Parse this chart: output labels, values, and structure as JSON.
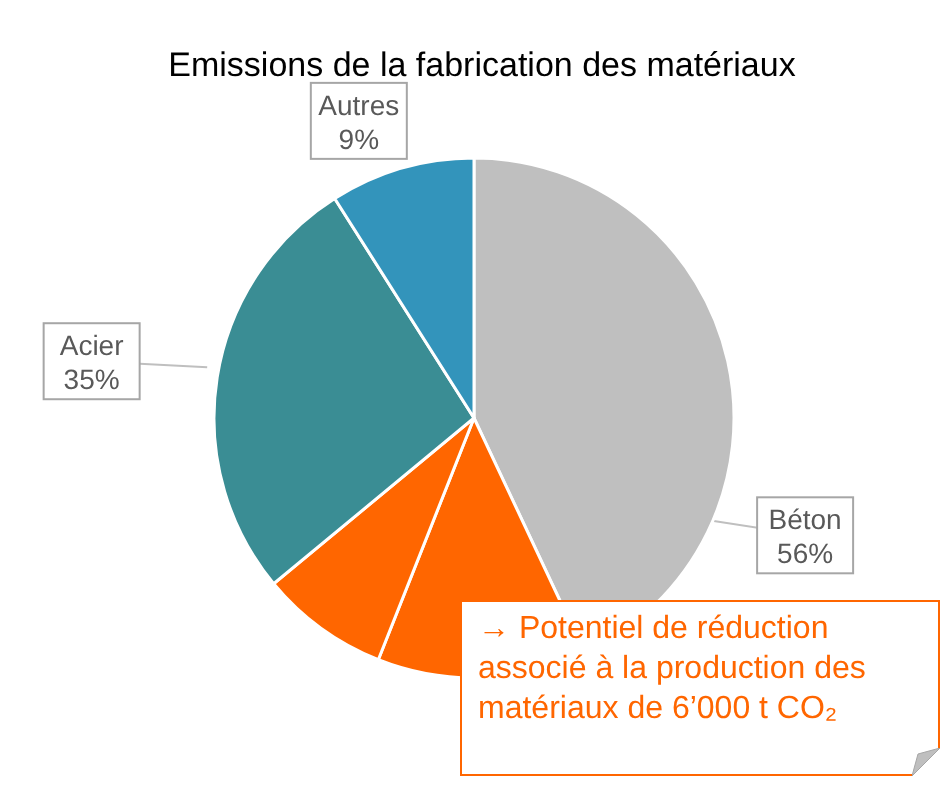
{
  "chart_data": {
    "type": "pie",
    "title": "Emissions de la fabrication des matériaux",
    "categories": [
      "Béton",
      null,
      null,
      "Acier",
      "Autres"
    ],
    "values": [
      43,
      13,
      8,
      27,
      9
    ],
    "colors": [
      "#bfbfbf",
      "#ff6600",
      "#ff6600",
      "#3a8d94",
      "#3394bb"
    ],
    "annotations": [
      "→ Potentiel de réduction associé à la production des matériaux de 6’000 t CO₂",
      {
        "text": "56%",
        "x": "Béton"
      },
      {
        "text": "35%",
        "x": "Acier"
      },
      {
        "text": "9%",
        "x": "Autres"
      }
    ],
    "legend": false
  }
}
